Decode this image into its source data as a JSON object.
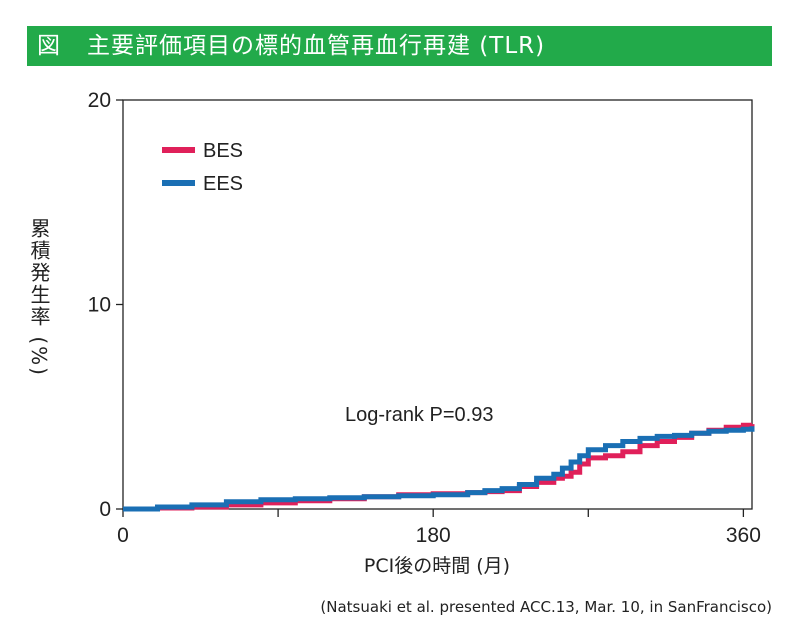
{
  "header": {
    "figure_label": "図",
    "title": "主要評価項目の標的血管再血行再建 (TLR)"
  },
  "source_note": "(Natsuaki et al. presented ACC.13, Mar. 10, in SanFrancisco)",
  "chart_data": {
    "type": "line",
    "title": "主要評価項目の標的血管再血行再建 (TLR)",
    "xlabel": "PCI後の時間 (月)",
    "ylabel": "累積発生率 (%)",
    "xlim": [
      0,
      365
    ],
    "ylim": [
      0,
      20
    ],
    "xticks": [
      0,
      180,
      360
    ],
    "xminor_ticks": [
      90,
      270
    ],
    "yticks": [
      0,
      10,
      20
    ],
    "grid": false,
    "legend_position": "top-left",
    "annotation": "Log-rank P=0.93",
    "series": [
      {
        "name": "BES",
        "color": "#e0205a",
        "x": [
          0,
          20,
          40,
          60,
          80,
          100,
          120,
          140,
          160,
          180,
          200,
          210,
          220,
          230,
          240,
          250,
          255,
          260,
          265,
          270,
          280,
          290,
          300,
          310,
          320,
          330,
          340,
          350,
          360,
          365
        ],
        "y": [
          0,
          0.05,
          0.1,
          0.2,
          0.3,
          0.4,
          0.5,
          0.6,
          0.7,
          0.75,
          0.8,
          0.85,
          0.9,
          1.1,
          1.3,
          1.5,
          1.6,
          1.8,
          2.2,
          2.5,
          2.6,
          2.8,
          3.1,
          3.3,
          3.5,
          3.7,
          3.85,
          4.0,
          4.1,
          4.15
        ]
      },
      {
        "name": "EES",
        "color": "#1a6fb4",
        "x": [
          0,
          20,
          40,
          60,
          80,
          100,
          120,
          140,
          160,
          180,
          200,
          210,
          220,
          230,
          240,
          250,
          255,
          260,
          265,
          270,
          280,
          290,
          300,
          310,
          320,
          330,
          340,
          350,
          360,
          365
        ],
        "y": [
          0,
          0.1,
          0.2,
          0.35,
          0.45,
          0.5,
          0.55,
          0.6,
          0.65,
          0.7,
          0.8,
          0.9,
          1.0,
          1.2,
          1.5,
          1.7,
          2.0,
          2.3,
          2.6,
          2.9,
          3.1,
          3.3,
          3.45,
          3.55,
          3.6,
          3.7,
          3.8,
          3.85,
          3.9,
          4.05
        ]
      }
    ]
  }
}
